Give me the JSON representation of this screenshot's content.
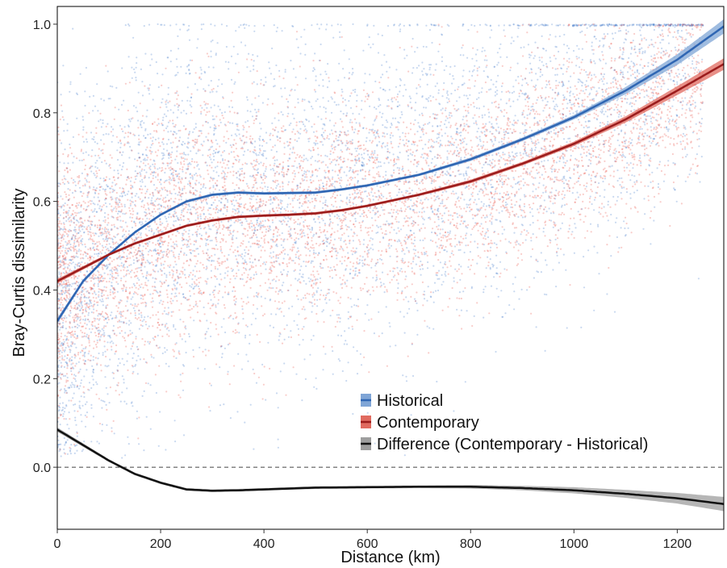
{
  "chart_data": {
    "type": "scatter",
    "xlabel": "Distance (km)",
    "ylabel": "Bray-Curtis dissimilarity",
    "xlim": [
      0,
      1290
    ],
    "ylim": [
      -0.14,
      1.04
    ],
    "x_ticks": [
      0,
      200,
      400,
      600,
      800,
      1000,
      1200
    ],
    "y_ticks": [
      0.0,
      0.2,
      0.4,
      0.6,
      0.8,
      1.0
    ],
    "y_tick_labels": [
      "0.0",
      "0.2",
      "0.4",
      "0.6",
      "0.8",
      "1.0"
    ],
    "reference_line": {
      "y": 0.0,
      "style": "dashed"
    },
    "grid": false,
    "legend_position": "bottom-center",
    "series": [
      {
        "name": "Historical",
        "color": "#2f66b3",
        "band_color": "#7fa5d6",
        "fit": {
          "x": [
            0,
            50,
            100,
            150,
            200,
            250,
            300,
            350,
            400,
            450,
            500,
            550,
            600,
            700,
            800,
            900,
            1000,
            1100,
            1200,
            1290
          ],
          "y": [
            0.33,
            0.42,
            0.48,
            0.53,
            0.57,
            0.6,
            0.615,
            0.62,
            0.618,
            0.619,
            0.62,
            0.627,
            0.636,
            0.66,
            0.695,
            0.74,
            0.79,
            0.85,
            0.92,
            0.995
          ],
          "band_halfwidth": [
            0.006,
            0.004,
            0.003,
            0.003,
            0.003,
            0.003,
            0.003,
            0.003,
            0.003,
            0.003,
            0.003,
            0.003,
            0.003,
            0.003,
            0.004,
            0.004,
            0.005,
            0.008,
            0.012,
            0.016
          ]
        }
      },
      {
        "name": "Contemporary",
        "color": "#9b1c1c",
        "band_color": "#e06a5f",
        "fit": {
          "x": [
            0,
            50,
            100,
            150,
            200,
            250,
            300,
            350,
            400,
            450,
            500,
            550,
            600,
            700,
            800,
            900,
            1000,
            1100,
            1200,
            1290
          ],
          "y": [
            0.42,
            0.45,
            0.48,
            0.505,
            0.525,
            0.545,
            0.557,
            0.565,
            0.568,
            0.57,
            0.573,
            0.58,
            0.59,
            0.615,
            0.645,
            0.685,
            0.73,
            0.785,
            0.85,
            0.91
          ],
          "band_halfwidth": [
            0.005,
            0.004,
            0.003,
            0.003,
            0.003,
            0.003,
            0.003,
            0.003,
            0.003,
            0.003,
            0.003,
            0.003,
            0.003,
            0.003,
            0.004,
            0.004,
            0.005,
            0.007,
            0.01,
            0.013
          ]
        }
      },
      {
        "name": "Difference (Contemporary - Historical)",
        "color": "#111111",
        "band_color": "#9e9e9e",
        "fit": {
          "x": [
            0,
            50,
            100,
            150,
            200,
            250,
            300,
            350,
            400,
            500,
            600,
            700,
            800,
            900,
            1000,
            1100,
            1200,
            1290
          ],
          "y": [
            0.085,
            0.05,
            0.015,
            -0.015,
            -0.035,
            -0.05,
            -0.053,
            -0.052,
            -0.05,
            -0.046,
            -0.045,
            -0.044,
            -0.044,
            -0.047,
            -0.052,
            -0.06,
            -0.07,
            -0.083
          ],
          "band_halfwidth": [
            0.005,
            0.004,
            0.003,
            0.003,
            0.003,
            0.003,
            0.003,
            0.003,
            0.003,
            0.003,
            0.003,
            0.003,
            0.004,
            0.005,
            0.007,
            0.009,
            0.012,
            0.016
          ]
        }
      }
    ]
  }
}
